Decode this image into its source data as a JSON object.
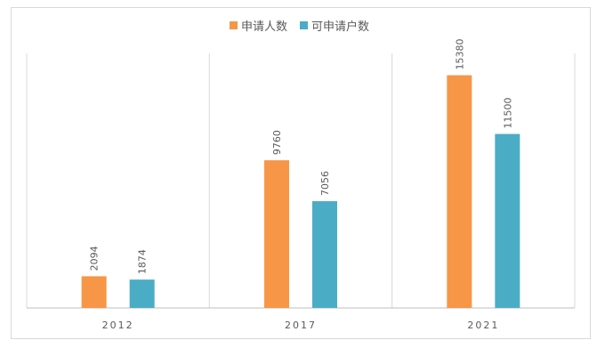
{
  "chart_data": {
    "type": "bar",
    "categories": [
      "2012",
      "2017",
      "2021"
    ],
    "series": [
      {
        "name": "申请人数",
        "values": [
          2094,
          9760,
          15380
        ],
        "color": "#F79646"
      },
      {
        "name": "可申请户数",
        "values": [
          1874,
          7056,
          11500
        ],
        "color": "#4BACC6"
      }
    ],
    "title": "",
    "xlabel": "",
    "ylabel": "",
    "ylim": [
      0,
      18000
    ],
    "grid": "vertical-category-separators",
    "legend_position": "top"
  }
}
